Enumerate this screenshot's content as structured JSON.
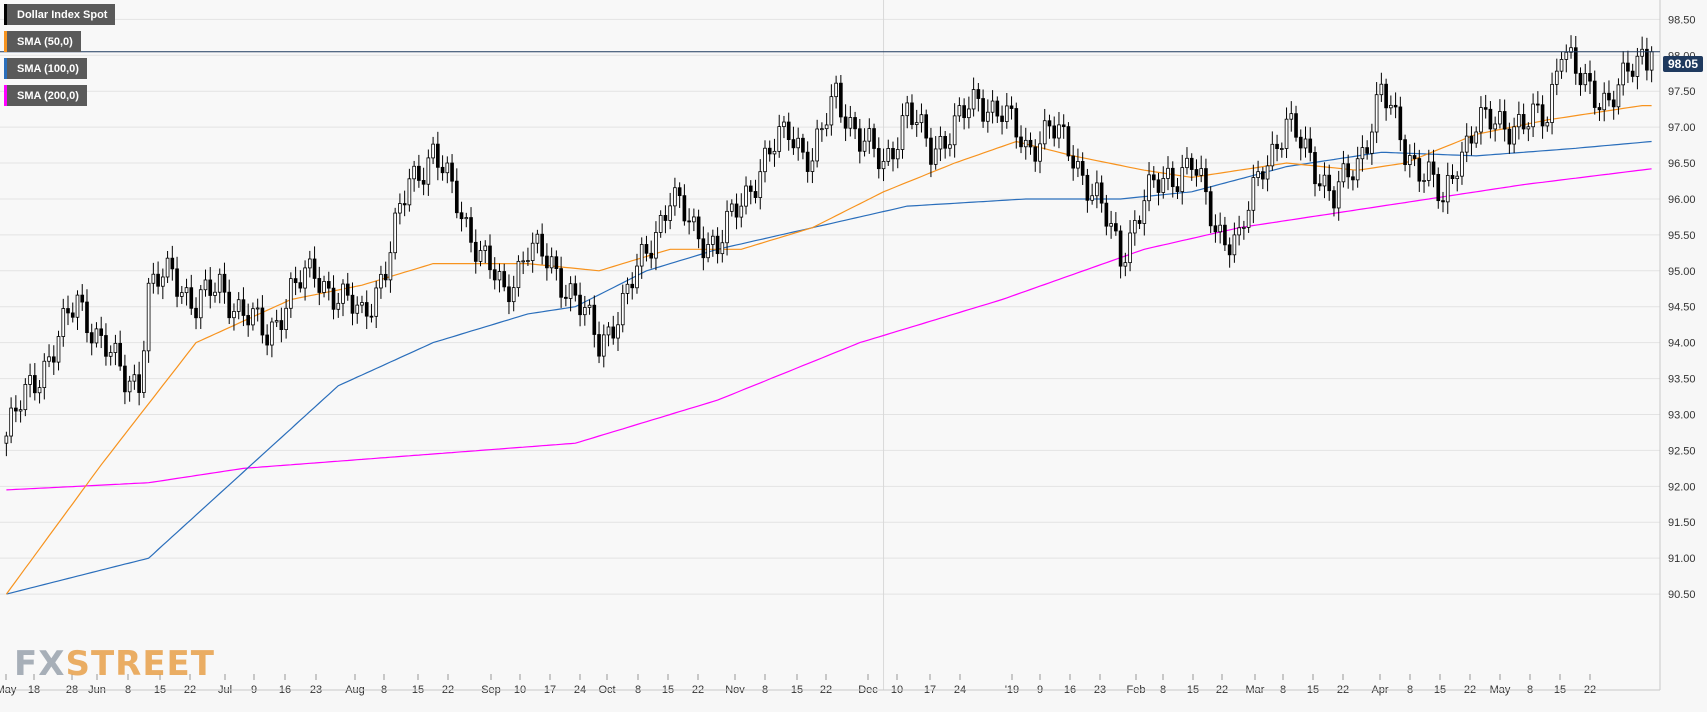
{
  "legend": {
    "main": {
      "label": "Dollar Index Spot",
      "color": "#000000"
    },
    "sma50": {
      "label": "SMA (50,0)",
      "color": "#f7931e"
    },
    "sma100": {
      "label": "SMA (100,0)",
      "color": "#2a6ebb"
    },
    "sma200": {
      "label": "SMA (200,0)",
      "color": "#ff00ff"
    }
  },
  "last_price": "98.05",
  "logo": {
    "prefix": "FX",
    "suffix": "STREET"
  },
  "chart_data": {
    "type": "candlestick",
    "title": "Dollar Index Spot",
    "ylim": [
      90,
      98.7
    ],
    "y_ticks": [
      "98.50",
      "98.00",
      "97.50",
      "97.00",
      "96.50",
      "96.00",
      "95.50",
      "95.00",
      "94.50",
      "94.00",
      "93.50",
      "93.00",
      "92.50",
      "92.00",
      "91.50",
      "91.00",
      "90.50"
    ],
    "x_ticks": [
      "May",
      "18",
      "28",
      "Jun",
      "8",
      "15",
      "22",
      "Jul",
      "9",
      "16",
      "23",
      "Aug",
      "8",
      "15",
      "22",
      "Sep",
      "10",
      "17",
      "24",
      "Oct",
      "8",
      "15",
      "22",
      "Nov",
      "8",
      "15",
      "22",
      "Dec",
      "10",
      "17",
      "24",
      "'19",
      "9",
      "16",
      "23",
      "Feb",
      "8",
      "15",
      "22",
      "Mar",
      "8",
      "15",
      "22",
      "Apr",
      "8",
      "15",
      "22",
      "May",
      "8",
      "15",
      "22"
    ],
    "grid": true,
    "legend_position": "top-left",
    "anchors": [
      [
        0,
        92.7
      ],
      [
        5,
        93.4
      ],
      [
        10,
        93.9
      ],
      [
        15,
        94.6
      ],
      [
        20,
        94.0
      ],
      [
        25,
        93.5
      ],
      [
        28,
        93.5
      ],
      [
        30,
        94.7
      ],
      [
        35,
        95.0
      ],
      [
        40,
        94.5
      ],
      [
        45,
        94.8
      ],
      [
        50,
        94.4
      ],
      [
        55,
        94.1
      ],
      [
        60,
        94.7
      ],
      [
        65,
        95.0
      ],
      [
        70,
        94.6
      ],
      [
        75,
        94.4
      ],
      [
        80,
        95.0
      ],
      [
        85,
        96.3
      ],
      [
        90,
        96.6
      ],
      [
        95,
        96.0
      ],
      [
        100,
        95.2
      ],
      [
        105,
        94.7
      ],
      [
        110,
        95.3
      ],
      [
        115,
        95.1
      ],
      [
        120,
        94.6
      ],
      [
        125,
        94.0
      ],
      [
        130,
        94.5
      ],
      [
        135,
        95.3
      ],
      [
        140,
        96.0
      ],
      [
        145,
        95.6
      ],
      [
        150,
        95.3
      ],
      [
        155,
        96.0
      ],
      [
        160,
        96.5
      ],
      [
        165,
        97.0
      ],
      [
        170,
        96.5
      ],
      [
        175,
        97.5
      ],
      [
        180,
        96.8
      ],
      [
        185,
        96.5
      ],
      [
        190,
        97.2
      ],
      [
        195,
        96.7
      ],
      [
        200,
        97.0
      ],
      [
        205,
        97.4
      ],
      [
        210,
        97.2
      ],
      [
        215,
        96.7
      ],
      [
        220,
        97.0
      ],
      [
        225,
        96.6
      ],
      [
        230,
        96.0
      ],
      [
        235,
        95.2
      ],
      [
        240,
        96.0
      ],
      [
        245,
        96.3
      ],
      [
        250,
        96.5
      ],
      [
        255,
        95.6
      ],
      [
        260,
        95.4
      ],
      [
        265,
        96.5
      ],
      [
        270,
        97.0
      ],
      [
        275,
        96.6
      ],
      [
        280,
        96.0
      ],
      [
        285,
        96.5
      ],
      [
        290,
        97.5
      ],
      [
        295,
        96.7
      ],
      [
        300,
        96.3
      ],
      [
        303,
        95.9
      ],
      [
        306,
        96.6
      ],
      [
        310,
        97.0
      ],
      [
        315,
        97.1
      ],
      [
        320,
        97.0
      ],
      [
        325,
        97.2
      ],
      [
        328,
        98.2
      ],
      [
        331,
        97.7
      ],
      [
        334,
        97.5
      ],
      [
        338,
        97.4
      ],
      [
        341,
        97.6
      ],
      [
        345,
        98.0
      ],
      [
        347,
        98.05
      ]
    ],
    "sma50": [
      [
        0,
        90.5
      ],
      [
        20,
        92.3
      ],
      [
        40,
        94.0
      ],
      [
        60,
        94.6
      ],
      [
        75,
        94.8
      ],
      [
        90,
        95.1
      ],
      [
        110,
        95.1
      ],
      [
        125,
        95.0
      ],
      [
        140,
        95.3
      ],
      [
        155,
        95.3
      ],
      [
        170,
        95.6
      ],
      [
        185,
        96.1
      ],
      [
        200,
        96.5
      ],
      [
        213,
        96.8
      ],
      [
        225,
        96.6
      ],
      [
        240,
        96.4
      ],
      [
        250,
        96.3
      ],
      [
        260,
        96.4
      ],
      [
        270,
        96.5
      ],
      [
        285,
        96.4
      ],
      [
        295,
        96.5
      ],
      [
        310,
        96.9
      ],
      [
        325,
        97.1
      ],
      [
        345,
        97.3
      ]
    ],
    "sma100": [
      [
        0,
        90.5
      ],
      [
        30,
        91.0
      ],
      [
        50,
        92.2
      ],
      [
        70,
        93.4
      ],
      [
        90,
        94.0
      ],
      [
        110,
        94.4
      ],
      [
        120,
        94.5
      ],
      [
        135,
        95.0
      ],
      [
        150,
        95.3
      ],
      [
        170,
        95.6
      ],
      [
        190,
        95.9
      ],
      [
        215,
        96.0
      ],
      [
        235,
        96.0
      ],
      [
        250,
        96.1
      ],
      [
        270,
        96.45
      ],
      [
        290,
        96.65
      ],
      [
        310,
        96.6
      ],
      [
        330,
        96.7
      ],
      [
        347,
        96.8
      ]
    ],
    "sma200": [
      [
        0,
        91.95
      ],
      [
        30,
        92.05
      ],
      [
        50,
        92.25
      ],
      [
        80,
        92.4
      ],
      [
        120,
        92.6
      ],
      [
        150,
        93.2
      ],
      [
        180,
        94.0
      ],
      [
        210,
        94.6
      ],
      [
        240,
        95.3
      ],
      [
        260,
        95.6
      ],
      [
        290,
        95.9
      ],
      [
        320,
        96.2
      ],
      [
        347,
        96.42
      ]
    ]
  }
}
